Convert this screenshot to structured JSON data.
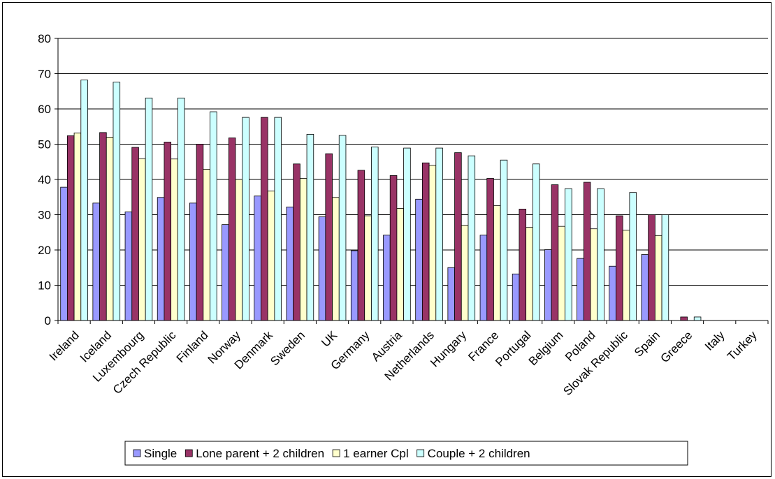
{
  "chart_data": {
    "type": "bar",
    "title": "",
    "xlabel": "",
    "ylabel": "",
    "ylim": [
      0,
      80
    ],
    "yticks": [
      0,
      10,
      20,
      30,
      40,
      50,
      60,
      70,
      80
    ],
    "grid": true,
    "legend_position": "bottom",
    "categories": [
      "Ireland",
      "Iceland",
      "Luxembourg",
      "Czech Republic",
      "Finland",
      "Norway",
      "Denmark",
      "Sweden",
      "UK",
      "Germany",
      "Austria",
      "Netherlands",
      "Hungary",
      "France",
      "Portugal",
      "Belgium",
      "Poland",
      "Slovak Republic",
      "Spain",
      "Greece",
      "Italy",
      "Turkey"
    ],
    "series": [
      {
        "name": "Single",
        "color": "#9999FF",
        "values": [
          37.8,
          33.3,
          30.8,
          34.9,
          33.3,
          27.2,
          35.3,
          32.2,
          29.4,
          19.8,
          24.2,
          34.4,
          15.0,
          24.2,
          13.2,
          20.1,
          17.6,
          15.4,
          18.7,
          0,
          0,
          0
        ]
      },
      {
        "name": "Lone parent + 2 children",
        "color": "#993366",
        "values": [
          52.4,
          53.3,
          49.1,
          50.6,
          50.0,
          51.8,
          57.6,
          44.4,
          47.3,
          42.6,
          41.1,
          44.7,
          47.6,
          40.3,
          31.6,
          38.5,
          39.2,
          29.7,
          30.0,
          1.0,
          0,
          0
        ]
      },
      {
        "name": "1 earner Cpl",
        "color": "#FFFFCC",
        "values": [
          53.2,
          52.0,
          45.9,
          45.8,
          42.9,
          40.0,
          36.7,
          40.3,
          34.9,
          29.7,
          31.8,
          44.0,
          27.0,
          32.6,
          26.4,
          26.7,
          26.0,
          25.6,
          24.1,
          0,
          0,
          0
        ]
      },
      {
        "name": "Couple + 2 children",
        "color": "#CCFFFF",
        "values": [
          68.2,
          67.6,
          63.1,
          63.1,
          59.2,
          57.6,
          57.6,
          52.8,
          52.5,
          49.2,
          48.9,
          48.9,
          46.7,
          45.5,
          44.4,
          37.4,
          37.4,
          36.3,
          30.0,
          1.0,
          0,
          0
        ]
      }
    ]
  }
}
